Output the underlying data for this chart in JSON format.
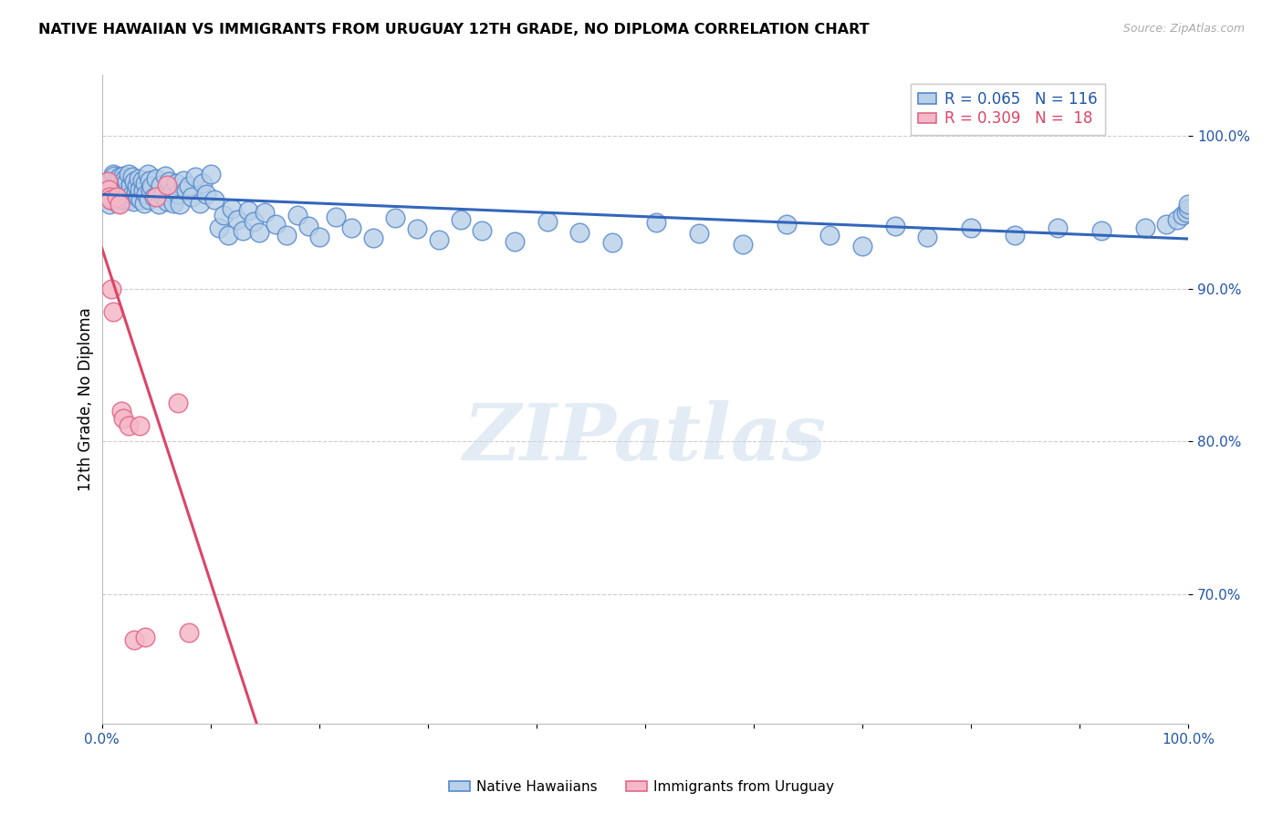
{
  "title": "NATIVE HAWAIIAN VS IMMIGRANTS FROM URUGUAY 12TH GRADE, NO DIPLOMA CORRELATION CHART",
  "source": "Source: ZipAtlas.com",
  "ylabel": "12th Grade, No Diploma",
  "ytick_labels": [
    "100.0%",
    "90.0%",
    "80.0%",
    "70.0%"
  ],
  "ytick_positions": [
    1.0,
    0.9,
    0.8,
    0.7
  ],
  "xlim": [
    0.0,
    1.0
  ],
  "ylim": [
    0.615,
    1.04
  ],
  "blue_R": 0.065,
  "blue_N": 116,
  "pink_R": 0.309,
  "pink_N": 18,
  "legend_label_blue": "Native Hawaiians",
  "legend_label_pink": "Immigrants from Uruguay",
  "watermark": "ZIPatlas",
  "blue_face": "#b8d0e8",
  "blue_edge": "#5588cc",
  "pink_face": "#f5b8c8",
  "pink_edge": "#e06888",
  "blue_line": "#3366bb",
  "pink_line": "#dd4466",
  "blue_scatter_x": [
    0.005,
    0.006,
    0.007,
    0.008,
    0.009,
    0.01,
    0.01,
    0.01,
    0.011,
    0.012,
    0.013,
    0.014,
    0.015,
    0.015,
    0.016,
    0.017,
    0.018,
    0.019,
    0.02,
    0.02,
    0.021,
    0.022,
    0.023,
    0.024,
    0.025,
    0.025,
    0.026,
    0.027,
    0.028,
    0.029,
    0.03,
    0.031,
    0.032,
    0.033,
    0.034,
    0.035,
    0.036,
    0.037,
    0.038,
    0.039,
    0.04,
    0.041,
    0.042,
    0.043,
    0.044,
    0.045,
    0.046,
    0.048,
    0.05,
    0.052,
    0.054,
    0.056,
    0.058,
    0.06,
    0.062,
    0.064,
    0.066,
    0.068,
    0.07,
    0.072,
    0.075,
    0.078,
    0.08,
    0.083,
    0.086,
    0.09,
    0.093,
    0.096,
    0.1,
    0.104,
    0.108,
    0.112,
    0.116,
    0.12,
    0.125,
    0.13,
    0.135,
    0.14,
    0.145,
    0.15,
    0.16,
    0.17,
    0.18,
    0.19,
    0.2,
    0.215,
    0.23,
    0.25,
    0.27,
    0.29,
    0.31,
    0.33,
    0.35,
    0.38,
    0.41,
    0.44,
    0.47,
    0.51,
    0.55,
    0.59,
    0.63,
    0.67,
    0.7,
    0.73,
    0.76,
    0.8,
    0.84,
    0.88,
    0.92,
    0.96,
    0.98,
    0.99,
    0.995,
    0.998,
    1.0,
    1.0
  ],
  "blue_scatter_y": [
    0.96,
    0.958,
    0.955,
    0.97,
    0.965,
    0.975,
    0.968,
    0.962,
    0.974,
    0.966,
    0.971,
    0.963,
    0.969,
    0.956,
    0.973,
    0.965,
    0.967,
    0.961,
    0.974,
    0.958,
    0.972,
    0.964,
    0.97,
    0.962,
    0.975,
    0.958,
    0.968,
    0.961,
    0.973,
    0.957,
    0.97,
    0.963,
    0.967,
    0.96,
    0.972,
    0.965,
    0.958,
    0.971,
    0.964,
    0.956,
    0.969,
    0.962,
    0.975,
    0.958,
    0.971,
    0.964,
    0.967,
    0.96,
    0.972,
    0.955,
    0.968,
    0.961,
    0.974,
    0.957,
    0.97,
    0.963,
    0.956,
    0.969,
    0.962,
    0.955,
    0.971,
    0.964,
    0.967,
    0.96,
    0.973,
    0.956,
    0.969,
    0.962,
    0.975,
    0.958,
    0.94,
    0.948,
    0.935,
    0.952,
    0.945,
    0.938,
    0.951,
    0.944,
    0.937,
    0.95,
    0.942,
    0.935,
    0.948,
    0.941,
    0.934,
    0.947,
    0.94,
    0.933,
    0.946,
    0.939,
    0.932,
    0.945,
    0.938,
    0.931,
    0.944,
    0.937,
    0.93,
    0.943,
    0.936,
    0.929,
    0.942,
    0.935,
    0.928,
    0.941,
    0.934,
    0.94,
    0.935,
    0.94,
    0.938,
    0.94,
    0.942,
    0.945,
    0.948,
    0.95,
    0.952,
    0.955
  ],
  "pink_scatter_x": [
    0.005,
    0.006,
    0.007,
    0.008,
    0.009,
    0.01,
    0.014,
    0.016,
    0.018,
    0.02,
    0.025,
    0.03,
    0.035,
    0.04,
    0.05,
    0.06,
    0.07,
    0.08
  ],
  "pink_scatter_y": [
    0.97,
    0.965,
    0.96,
    0.958,
    0.9,
    0.885,
    0.96,
    0.955,
    0.82,
    0.815,
    0.81,
    0.67,
    0.81,
    0.672,
    0.96,
    0.968,
    0.825,
    0.675
  ]
}
